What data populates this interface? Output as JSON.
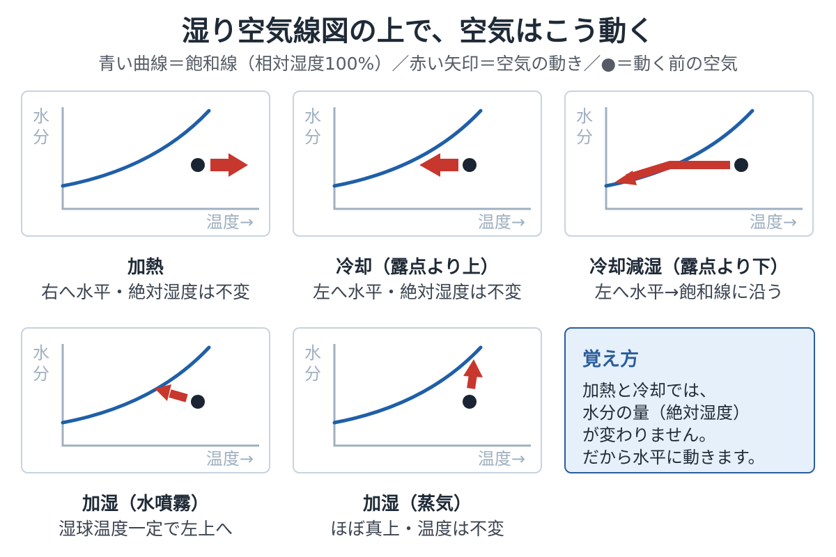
{
  "header": {
    "title": "湿り空気線図の上で、空気はこう動く",
    "legend": "青い曲線＝飽和線（相対湿度100%）／赤い矢印＝空気の動き／●＝動く前の空気"
  },
  "axis": {
    "y": "水分",
    "x": "温度→"
  },
  "colors": {
    "curve": "#1f5fa8",
    "arrow": "#c8372d",
    "dot": "#1a2433",
    "axis": "#9fb0c0"
  },
  "panels": [
    {
      "title": "加熱",
      "desc": "右へ水平・絶対湿度は不変"
    },
    {
      "title": "冷却（露点より上）",
      "desc": "左へ水平・絶対湿度は不変"
    },
    {
      "title": "冷却減湿（露点より下）",
      "desc": "左へ水平→飽和線に沿う"
    },
    {
      "title": "加湿（水噴霧）",
      "desc": "湿球温度一定で左上へ"
    },
    {
      "title": "加湿（蒸気）",
      "desc": "ほぼ真上・温度は不変"
    }
  ],
  "memo": {
    "title": "覚え方",
    "lines": [
      "加熱と冷却では、",
      "水分の量（絶対湿度）",
      "が変わりません。",
      "だから水平に動きます。"
    ]
  }
}
